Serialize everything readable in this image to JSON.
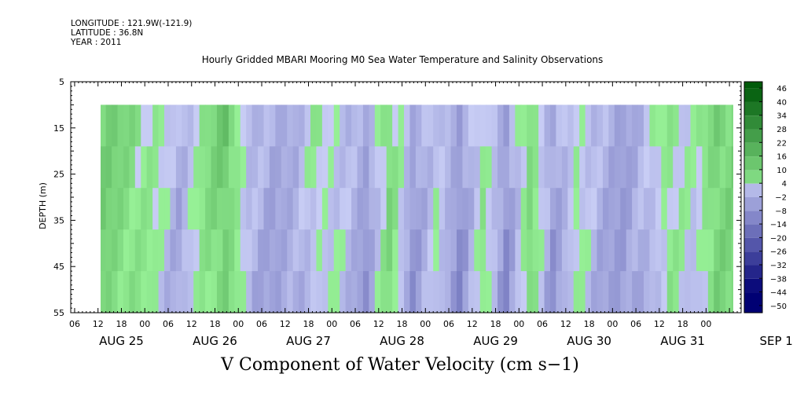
{
  "meta": {
    "longitude": "LONGITUDE : 121.9W(-121.9)",
    "latitude": "LATITUDE : 36.8N",
    "year": "YEAR : 2011"
  },
  "title": "Hourly Gridded MBARI Mooring M0 Sea Water Temperature and Salinity Observations",
  "variable_label": "V Component of Water Velocity (cm s−1)",
  "ylabel": "DEPTH (m)",
  "chart_data": {
    "type": "heatmap",
    "title": "Hourly Gridded MBARI Mooring M0 Sea Water Temperature and Salinity Observations",
    "xlabel": "",
    "ylabel": "DEPTH (m)",
    "y_ticks": [
      "5",
      "15",
      "25",
      "35",
      "45",
      "55"
    ],
    "ylim": [
      55,
      5
    ],
    "xlim": [
      "2011-08-24T23:00",
      "2011-09-01T03:00"
    ],
    "x_hour_ticks": [
      "06",
      "12",
      "18",
      "00",
      "06",
      "12",
      "18",
      "00",
      "06",
      "12",
      "18",
      "00",
      "06",
      "12",
      "18",
      "00",
      "06",
      "12",
      "18",
      "00",
      "06",
      "12",
      "18",
      "00",
      "06",
      "12",
      "18",
      "00"
    ],
    "x_day_labels": [
      "AUG 25",
      "AUG 26",
      "AUG 27",
      "AUG 28",
      "AUG 29",
      "AUG 30",
      "AUG 31",
      "SEP   1"
    ],
    "data_depth_range": [
      10,
      55
    ],
    "data_time_range": [
      "2011-08-25T02:00",
      "2011-09-01T02:00"
    ],
    "colorbar": {
      "levels": [
        46,
        40,
        34,
        28,
        22,
        16,
        10,
        4,
        -2,
        -8,
        -14,
        -20,
        -26,
        -32,
        -38,
        -44,
        -50
      ],
      "label_levels": [
        "46",
        "40",
        "34",
        "28",
        "22",
        "16",
        "10",
        "4",
        "−2",
        "−8",
        "−14",
        "−20",
        "−26",
        "−32",
        "−38",
        "−44",
        "−50"
      ]
    },
    "v_profile": [
      {
        "time": "2011-08-25T02:00",
        "v": 12
      },
      {
        "time": "2011-08-25T08:00",
        "v": 10
      },
      {
        "time": "2011-08-25T14:00",
        "v": 6
      },
      {
        "time": "2011-08-25T20:00",
        "v": 2
      },
      {
        "time": "2011-08-26T02:00",
        "v": -6
      },
      {
        "time": "2011-08-26T08:00",
        "v": 4
      },
      {
        "time": "2011-08-26T14:00",
        "v": 12
      },
      {
        "time": "2011-08-26T20:00",
        "v": -4
      },
      {
        "time": "2011-08-27T02:00",
        "v": -8
      },
      {
        "time": "2011-08-27T08:00",
        "v": -6
      },
      {
        "time": "2011-08-27T14:00",
        "v": 2
      },
      {
        "time": "2011-08-27T20:00",
        "v": -2
      },
      {
        "time": "2011-08-28T02:00",
        "v": -10
      },
      {
        "time": "2011-08-28T08:00",
        "v": 8
      },
      {
        "time": "2011-08-28T14:00",
        "v": -10
      },
      {
        "time": "2011-08-28T20:00",
        "v": 0
      },
      {
        "time": "2011-08-29T02:00",
        "v": -12
      },
      {
        "time": "2011-08-29T08:00",
        "v": 4
      },
      {
        "time": "2011-08-29T14:00",
        "v": -12
      },
      {
        "time": "2011-08-29T20:00",
        "v": 8
      },
      {
        "time": "2011-08-30T02:00",
        "v": -10
      },
      {
        "time": "2011-08-30T08:00",
        "v": 2
      },
      {
        "time": "2011-08-30T14:00",
        "v": -6
      },
      {
        "time": "2011-08-30T20:00",
        "v": -10
      },
      {
        "time": "2011-08-31T02:00",
        "v": -4
      },
      {
        "time": "2011-08-31T08:00",
        "v": 4
      },
      {
        "time": "2011-08-31T14:00",
        "v": -2
      },
      {
        "time": "2011-08-31T20:00",
        "v": 10
      },
      {
        "time": "2011-09-01T02:00",
        "v": 8
      }
    ],
    "grid": false,
    "legend": "colorbar-right"
  }
}
